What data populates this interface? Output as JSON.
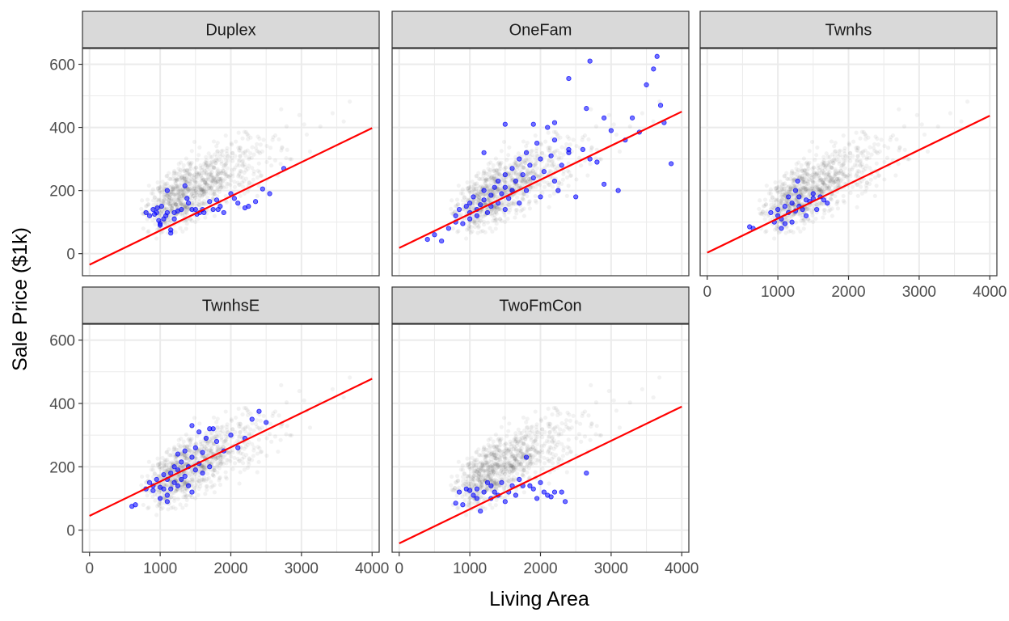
{
  "chart_data": {
    "type": "scatter",
    "xlabel": "Living Area",
    "ylabel": "Sale Price ($1k)",
    "xlim": [
      -100,
      4100
    ],
    "ylim": [
      -70,
      650
    ],
    "x_ticks": [
      0,
      1000,
      2000,
      3000,
      4000
    ],
    "y_ticks": [
      0,
      200,
      400,
      600
    ],
    "grid": true,
    "background_points": {
      "color": "#000000",
      "opacity": 0.05
    },
    "colors": {
      "points": "#0000ff",
      "fit_line": "#ff0000",
      "strip_fill": "#d9d9d9",
      "panel_border": "#333333",
      "grid": "#ebebeb"
    },
    "panels": [
      {
        "name": "Duplex",
        "fit_line": [
          [
            0,
            -35
          ],
          [
            4000,
            398
          ]
        ],
        "points": [
          [
            800,
            130
          ],
          [
            850,
            120
          ],
          [
            900,
            140
          ],
          [
            920,
            125
          ],
          [
            950,
            130
          ],
          [
            960,
            145
          ],
          [
            980,
            105
          ],
          [
            1000,
            95
          ],
          [
            1000,
            90
          ],
          [
            1020,
            150
          ],
          [
            1050,
            110
          ],
          [
            1080,
            120
          ],
          [
            1100,
            200
          ],
          [
            1100,
            130
          ],
          [
            1150,
            75
          ],
          [
            1150,
            65
          ],
          [
            1200,
            110
          ],
          [
            1200,
            130
          ],
          [
            1250,
            135
          ],
          [
            1300,
            140
          ],
          [
            1350,
            215
          ],
          [
            1380,
            175
          ],
          [
            1400,
            160
          ],
          [
            1450,
            140
          ],
          [
            1500,
            140
          ],
          [
            1520,
            125
          ],
          [
            1560,
            130
          ],
          [
            1600,
            140
          ],
          [
            1620,
            130
          ],
          [
            1700,
            165
          ],
          [
            1750,
            140
          ],
          [
            1800,
            170
          ],
          [
            1820,
            140
          ],
          [
            1850,
            150
          ],
          [
            1900,
            130
          ],
          [
            2000,
            190
          ],
          [
            2050,
            175
          ],
          [
            2100,
            160
          ],
          [
            2200,
            145
          ],
          [
            2250,
            150
          ],
          [
            2350,
            165
          ],
          [
            2450,
            205
          ],
          [
            2550,
            190
          ],
          [
            2750,
            270
          ]
        ]
      },
      {
        "name": "OneFam",
        "fit_line": [
          [
            0,
            18
          ],
          [
            4000,
            450
          ]
        ],
        "points": [
          [
            400,
            45
          ],
          [
            500,
            60
          ],
          [
            600,
            40
          ],
          [
            700,
            80
          ],
          [
            800,
            100
          ],
          [
            800,
            120
          ],
          [
            850,
            140
          ],
          [
            900,
            95
          ],
          [
            950,
            150
          ],
          [
            1000,
            110
          ],
          [
            1000,
            130
          ],
          [
            1000,
            160
          ],
          [
            1050,
            180
          ],
          [
            1100,
            120
          ],
          [
            1100,
            140
          ],
          [
            1150,
            155
          ],
          [
            1200,
            170
          ],
          [
            1200,
            200
          ],
          [
            1250,
            130
          ],
          [
            1300,
            150
          ],
          [
            1300,
            185
          ],
          [
            1350,
            210
          ],
          [
            1400,
            160
          ],
          [
            1400,
            230
          ],
          [
            1450,
            190
          ],
          [
            1500,
            140
          ],
          [
            1500,
            250
          ],
          [
            1500,
            210
          ],
          [
            1550,
            175
          ],
          [
            1600,
            270
          ],
          [
            1600,
            200
          ],
          [
            1650,
            230
          ],
          [
            1700,
            300
          ],
          [
            1700,
            160
          ],
          [
            1750,
            250
          ],
          [
            1800,
            200
          ],
          [
            1800,
            320
          ],
          [
            1850,
            280
          ],
          [
            1900,
            240
          ],
          [
            1950,
            350
          ],
          [
            2000,
            300
          ],
          [
            2000,
            180
          ],
          [
            2050,
            260
          ],
          [
            2100,
            400
          ],
          [
            2150,
            310
          ],
          [
            2200,
            360
          ],
          [
            2200,
            230
          ],
          [
            2250,
            200
          ],
          [
            2300,
            280
          ],
          [
            2400,
            330
          ],
          [
            2400,
            320
          ],
          [
            2500,
            180
          ],
          [
            2600,
            330
          ],
          [
            2650,
            460
          ],
          [
            2700,
            300
          ],
          [
            2800,
            290
          ],
          [
            2900,
            220
          ],
          [
            3000,
            390
          ],
          [
            3100,
            200
          ],
          [
            3300,
            430
          ],
          [
            3500,
            535
          ],
          [
            3600,
            585
          ],
          [
            3650,
            625
          ],
          [
            3700,
            470
          ],
          [
            3750,
            415
          ],
          [
            3850,
            285
          ],
          [
            2700,
            610
          ],
          [
            2400,
            555
          ],
          [
            1500,
            410
          ],
          [
            1200,
            320
          ],
          [
            1900,
            410
          ],
          [
            2200,
            415
          ],
          [
            2900,
            430
          ],
          [
            3400,
            385
          ],
          [
            3200,
            360
          ]
        ]
      },
      {
        "name": "Twnhs",
        "fit_line": [
          [
            0,
            3
          ],
          [
            4000,
            437
          ]
        ],
        "points": [
          [
            600,
            85
          ],
          [
            650,
            80
          ],
          [
            900,
            130
          ],
          [
            950,
            100
          ],
          [
            1000,
            120
          ],
          [
            1000,
            140
          ],
          [
            1050,
            110
          ],
          [
            1100,
            95
          ],
          [
            1100,
            150
          ],
          [
            1150,
            130
          ],
          [
            1200,
            160
          ],
          [
            1200,
            100
          ],
          [
            1250,
            200
          ],
          [
            1280,
            230
          ],
          [
            1300,
            150
          ],
          [
            1300,
            180
          ],
          [
            1350,
            140
          ],
          [
            1400,
            170
          ],
          [
            1400,
            120
          ],
          [
            1450,
            165
          ],
          [
            1500,
            175
          ],
          [
            1500,
            190
          ],
          [
            1550,
            140
          ],
          [
            1600,
            180
          ],
          [
            1650,
            170
          ],
          [
            1700,
            160
          ],
          [
            1050,
            80
          ],
          [
            1150,
            180
          ],
          [
            1250,
            135
          ]
        ]
      },
      {
        "name": "TwnhsE",
        "fit_line": [
          [
            0,
            45
          ],
          [
            4000,
            478
          ]
        ],
        "points": [
          [
            600,
            75
          ],
          [
            650,
            80
          ],
          [
            800,
            130
          ],
          [
            850,
            150
          ],
          [
            900,
            140
          ],
          [
            900,
            125
          ],
          [
            950,
            160
          ],
          [
            1000,
            100
          ],
          [
            1000,
            135
          ],
          [
            1050,
            130
          ],
          [
            1050,
            175
          ],
          [
            1100,
            110
          ],
          [
            1100,
            90
          ],
          [
            1100,
            160
          ],
          [
            1150,
            180
          ],
          [
            1200,
            150
          ],
          [
            1200,
            200
          ],
          [
            1250,
            190
          ],
          [
            1250,
            140
          ],
          [
            1300,
            160
          ],
          [
            1300,
            215
          ],
          [
            1350,
            170
          ],
          [
            1350,
            250
          ],
          [
            1400,
            200
          ],
          [
            1400,
            140
          ],
          [
            1450,
            230
          ],
          [
            1450,
            330
          ],
          [
            1500,
            190
          ],
          [
            1500,
            260
          ],
          [
            1550,
            210
          ],
          [
            1550,
            310
          ],
          [
            1600,
            245
          ],
          [
            1600,
            180
          ],
          [
            1650,
            290
          ],
          [
            1700,
            320
          ],
          [
            1750,
            320
          ],
          [
            1800,
            280
          ],
          [
            1900,
            250
          ],
          [
            2000,
            300
          ],
          [
            2100,
            260
          ],
          [
            2200,
            290
          ],
          [
            2300,
            350
          ],
          [
            2400,
            375
          ],
          [
            2500,
            340
          ],
          [
            1250,
            240
          ],
          [
            1150,
            130
          ],
          [
            1450,
            120
          ],
          [
            1700,
            200
          ]
        ]
      },
      {
        "name": "TwoFmCon",
        "fit_line": [
          [
            0,
            -42
          ],
          [
            4000,
            390
          ]
        ],
        "points": [
          [
            800,
            85
          ],
          [
            850,
            120
          ],
          [
            900,
            80
          ],
          [
            950,
            130
          ],
          [
            1000,
            125
          ],
          [
            1050,
            110
          ],
          [
            1100,
            130
          ],
          [
            1100,
            100
          ],
          [
            1150,
            60
          ],
          [
            1200,
            120
          ],
          [
            1250,
            150
          ],
          [
            1300,
            140
          ],
          [
            1300,
            100
          ],
          [
            1350,
            120
          ],
          [
            1400,
            110
          ],
          [
            1450,
            150
          ],
          [
            1500,
            90
          ],
          [
            1550,
            120
          ],
          [
            1600,
            140
          ],
          [
            1650,
            110
          ],
          [
            1700,
            160
          ],
          [
            1750,
            140
          ],
          [
            1800,
            230
          ],
          [
            1850,
            140
          ],
          [
            1900,
            130
          ],
          [
            1950,
            100
          ],
          [
            2000,
            150
          ],
          [
            2050,
            120
          ],
          [
            2100,
            110
          ],
          [
            2150,
            105
          ],
          [
            2200,
            120
          ],
          [
            2300,
            120
          ],
          [
            2350,
            90
          ],
          [
            2650,
            180
          ]
        ]
      }
    ]
  }
}
